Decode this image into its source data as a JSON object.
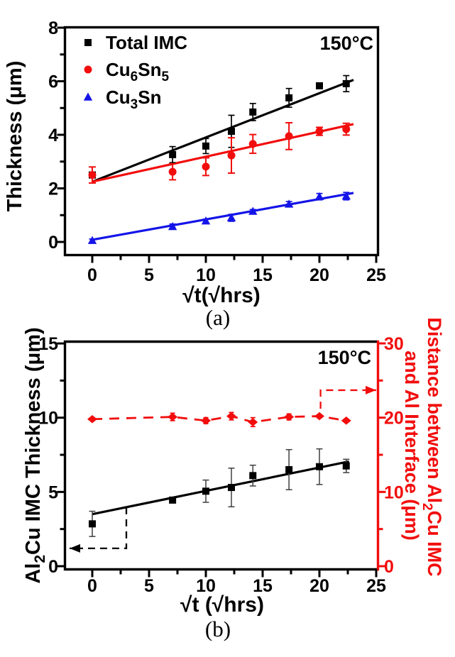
{
  "figure": {
    "background": "#ffffff",
    "captions": {
      "a": "(a)",
      "b": "(b)"
    }
  },
  "colors": {
    "black": "#000000",
    "red": "#f20d0d",
    "blue": "#1414e8",
    "gray_err": "#3f3f3f"
  },
  "chart_data": [
    {
      "id": "a",
      "type": "scatter",
      "temperature_label": "150°C",
      "caption": "(a)",
      "xlabel": "√t(√hrs)",
      "ylabel_parts": [
        [
          "Thickness (μm)",
          0
        ]
      ],
      "xlim": [
        -2.3,
        25.2
      ],
      "ylim": [
        -0.5,
        8
      ],
      "xticks": [
        0,
        5,
        10,
        15,
        20,
        25
      ],
      "xminor": [
        2.5,
        7.5,
        12.5,
        17.5,
        22.5
      ],
      "yticks": [
        0,
        2,
        4,
        6,
        8
      ],
      "yminor": [
        1,
        3,
        5,
        7
      ],
      "grid": false,
      "legend_position": "top-left",
      "x": [
        0,
        7.07,
        10,
        12.25,
        14.14,
        17.32,
        20,
        22.36
      ],
      "series": [
        {
          "name": "Total IMC",
          "label_parts": [
            [
              "Total IMC",
              0
            ]
          ],
          "marker": "square",
          "color": "#000000",
          "y": [
            2.5,
            3.26,
            3.58,
            4.13,
            4.85,
            5.38,
            5.83,
            5.91
          ],
          "err": [
            0,
            0.3,
            0.28,
            0.6,
            0.32,
            0.35,
            0,
            0.3
          ],
          "fit": [
            [
              0,
              2.25
            ],
            [
              23.0,
              6.05
            ]
          ]
        },
        {
          "name": "Cu6Sn5",
          "label_parts": [
            [
              "Cu",
              0
            ],
            [
              "6",
              1
            ],
            [
              "Sn",
              0
            ],
            [
              "5",
              1
            ]
          ],
          "marker": "circle",
          "color": "#f20d0d",
          "y": [
            2.5,
            2.62,
            2.81,
            3.23,
            3.66,
            3.95,
            4.13,
            4.21
          ],
          "err": [
            0.3,
            0.3,
            0.33,
            0.66,
            0.35,
            0.5,
            0.15,
            0.22
          ],
          "fit": [
            [
              0,
              2.25
            ],
            [
              23.0,
              4.4
            ]
          ]
        },
        {
          "name": "Cu3Sn",
          "label_parts": [
            [
              "Cu",
              0
            ],
            [
              "3",
              1
            ],
            [
              "Sn",
              0
            ]
          ],
          "marker": "triangle",
          "color": "#1414e8",
          "y": [
            0.05,
            0.57,
            0.78,
            0.9,
            1.14,
            1.41,
            1.69,
            1.71
          ],
          "err": [
            0.06,
            0.1,
            0.07,
            0.13,
            0.07,
            0.1,
            0.12,
            0.14
          ],
          "fit": [
            [
              0,
              0.08
            ],
            [
              23.0,
              1.83
            ]
          ]
        }
      ]
    },
    {
      "id": "b",
      "type": "scatter",
      "temperature_label": "150°C",
      "caption": "(b)",
      "xlabel": "√t (√hrs)",
      "ylabel_left_parts": [
        [
          "Al",
          0
        ],
        [
          "2",
          1
        ],
        [
          "Cu IMC Thickness (μm)",
          0
        ]
      ],
      "ylabel_right_lines": [
        [
          [
            "Distance between Al",
            0
          ],
          [
            "2",
            1
          ],
          [
            "Cu IMC",
            0
          ]
        ],
        [
          [
            "and Al Interface (μm)",
            0
          ]
        ]
      ],
      "xlim": [
        -2.3,
        25.2
      ],
      "ylim_left": [
        -0.25,
        15.15
      ],
      "ylim_right": [
        -0.5,
        30.3
      ],
      "xticks": [
        0,
        5,
        10,
        15,
        20,
        25
      ],
      "xminor": [
        2.5,
        7.5,
        12.5,
        17.5,
        22.5
      ],
      "yticks_left": [
        0,
        5,
        10,
        15
      ],
      "yminor_left": [
        2.5,
        7.5,
        12.5
      ],
      "yticks_right": [
        0,
        10,
        20,
        30
      ],
      "yminor_right": [
        5,
        15,
        25
      ],
      "grid": false,
      "x": [
        0,
        7.07,
        10,
        12.25,
        14.14,
        17.32,
        20,
        22.36
      ],
      "series": [
        {
          "name": "Al2Cu IMC thickness",
          "axis": "left",
          "marker": "square",
          "color": "#000000",
          "err_color": "#3f3f3f",
          "y": [
            2.85,
            4.45,
            5.05,
            5.3,
            6.1,
            6.5,
            6.7,
            6.75
          ],
          "err": [
            0.85,
            0.12,
            0.75,
            1.3,
            0.7,
            1.35,
            1.2,
            0.45
          ],
          "fit": [
            [
              0,
              3.5
            ],
            [
              22.6,
              7.05
            ]
          ]
        },
        {
          "name": "Distance between Al2Cu IMC and Al interface",
          "axis": "right",
          "marker": "diamond",
          "color": "#f20d0d",
          "connect": "dashed",
          "y": [
            19.8,
            20.1,
            19.6,
            20.2,
            19.4,
            20.1,
            20.2,
            19.6
          ],
          "err": [
            0,
            0.5,
            0.4,
            0.5,
            0.6,
            0.4,
            0,
            0
          ]
        }
      ],
      "arrows": [
        {
          "axis": "left",
          "color": "#000000",
          "points": [
            [
              3,
              3.97
            ],
            [
              3,
              1.2
            ],
            [
              -2.0,
              1.2
            ]
          ],
          "head": "left"
        },
        {
          "axis": "right",
          "color": "#f20d0d",
          "points": [
            [
              20.1,
              21.2
            ],
            [
              20.1,
              23.7
            ],
            [
              25.0,
              23.7
            ]
          ],
          "head": "right"
        }
      ]
    }
  ]
}
